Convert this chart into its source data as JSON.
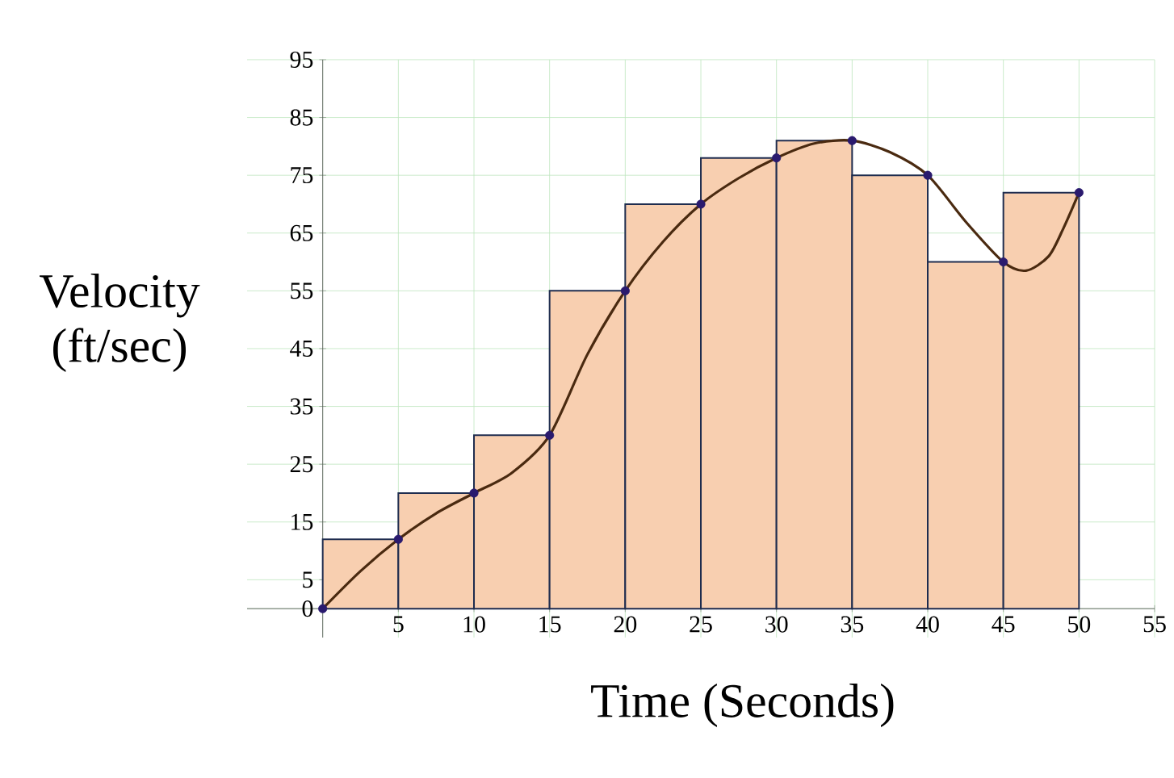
{
  "chart_data": {
    "type": "histogram",
    "xlabel": "Time (Seconds)",
    "ylabel": "Velocity (ft/sec)",
    "bins": [
      0,
      5,
      10,
      15,
      20,
      25,
      30,
      35,
      40,
      45,
      50
    ],
    "values": [
      12,
      20,
      30,
      55,
      70,
      78,
      81,
      75,
      60,
      72
    ],
    "color": "#f8cfb0",
    "series": [
      {
        "type": "line",
        "color": "#4a2a10",
        "x": [
          0,
          2.5,
          5,
          7.5,
          10,
          12.5,
          15,
          17.5,
          20,
          22.5,
          25,
          27.5,
          30,
          32.5,
          35,
          37.5,
          40,
          42.5,
          45,
          46.5,
          48,
          49,
          50
        ],
        "values": [
          0,
          6.5,
          12,
          16.5,
          20,
          23.5,
          30,
          44,
          55,
          63.5,
          70,
          74.5,
          78,
          80.5,
          81,
          79,
          75,
          67,
          60,
          58.5,
          61,
          66,
          72
        ]
      },
      {
        "type": "scatter",
        "color": "#2a1a6e",
        "marker": "circle",
        "x": [
          0,
          5,
          10,
          15,
          20,
          25,
          30,
          35,
          40,
          45,
          50
        ],
        "values": [
          0,
          12,
          20,
          30,
          55,
          70,
          78,
          81,
          75,
          60,
          72
        ]
      }
    ],
    "xlim": [
      -5,
      55
    ],
    "ylim": [
      -5,
      95
    ],
    "xticks": [
      {
        "value": 0,
        "label": null
      },
      5,
      10,
      15,
      20,
      25,
      30,
      35,
      40,
      45,
      50,
      55
    ],
    "yticks": [
      0,
      5,
      15,
      25,
      35,
      45,
      55,
      65,
      75,
      85,
      95
    ],
    "grid": true
  }
}
